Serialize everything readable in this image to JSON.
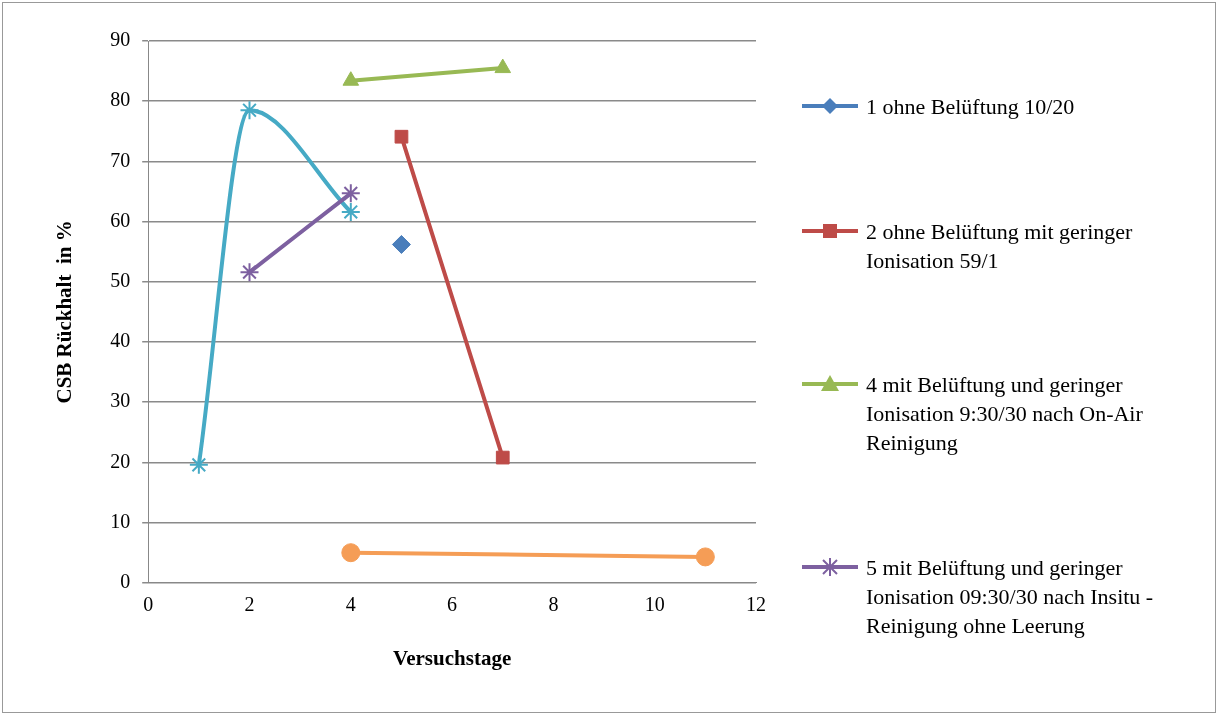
{
  "chart_data": {
    "type": "line",
    "xlabel": "Versuchstage",
    "ylabel": "CSB Rückhalt  in %",
    "xlim": [
      0,
      12
    ],
    "xticks": [
      0,
      2,
      4,
      6,
      8,
      10,
      12
    ],
    "ylim": [
      0,
      90
    ],
    "yticks": [
      0,
      10,
      20,
      30,
      40,
      50,
      60,
      70,
      80,
      90
    ],
    "grid": "y",
    "legend": "right",
    "series": [
      {
        "name": "1 ohne Belüftung 10/20",
        "color": "#4a7ebb",
        "marker": "diamond",
        "x": [
          5
        ],
        "values": [
          56.2
        ]
      },
      {
        "name": "2 ohne Belüftung mit geringer Ionisation 59/1",
        "color": "#be4b48",
        "marker": "square",
        "x": [
          5,
          7
        ],
        "values": [
          74.1,
          20.8
        ]
      },
      {
        "name": "4 mit Belüftung und geringer Ionisation 9:30/30 nach On-Air Reinigung",
        "color": "#98b954",
        "marker": "triangle",
        "x": [
          4,
          7
        ],
        "values": [
          83.4,
          85.5
        ]
      },
      {
        "name": "5 mit Belüftung und geringer Ionisation 09:30/30 nach Insitu - Reinigung ohne Leerung",
        "color": "#7d60a0",
        "marker": "cross",
        "x": [
          2,
          4
        ],
        "values": [
          51.6,
          64.7
        ]
      },
      {
        "color": "#46aac5",
        "marker": "cross",
        "x": [
          1,
          2,
          4
        ],
        "values": [
          19.6,
          78.5,
          61.6
        ]
      },
      {
        "color": "#f59d56",
        "marker": "circle",
        "x": [
          4,
          11
        ],
        "values": [
          5.0,
          4.3
        ]
      }
    ]
  }
}
